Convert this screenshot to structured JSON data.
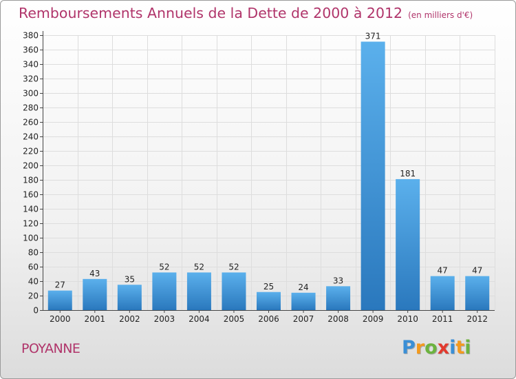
{
  "title": "Remboursements Annuels de la Dette de 2000 à 2012",
  "unit": "(en milliers d'€)",
  "commune": "POYANNE",
  "logo": {
    "letters": [
      "P",
      "r",
      "o",
      "x",
      "i",
      "t",
      "i"
    ],
    "colors": [
      "#3a8fd6",
      "#f39a1e",
      "#6cb33f",
      "#e23a2e",
      "#3a8fd6",
      "#f39a1e",
      "#6cb33f"
    ]
  },
  "colors": {
    "title": "#b0346a",
    "bar_top": "#5bb0ec",
    "bar_bottom": "#2a78bd",
    "grid": "#dddddd"
  },
  "chart_data": {
    "type": "bar",
    "title": "Remboursements Annuels de la Dette de 2000 à 2012",
    "ylabel": "",
    "xlabel": "",
    "ylim": [
      0,
      380
    ],
    "ytick_step": 20,
    "grid": true,
    "categories": [
      "2000",
      "2001",
      "2002",
      "2003",
      "2004",
      "2005",
      "2006",
      "2007",
      "2008",
      "2009",
      "2010",
      "2011",
      "2012"
    ],
    "values": [
      27,
      43,
      35,
      52,
      52,
      52,
      25,
      24,
      33,
      371,
      181,
      47,
      47
    ]
  }
}
